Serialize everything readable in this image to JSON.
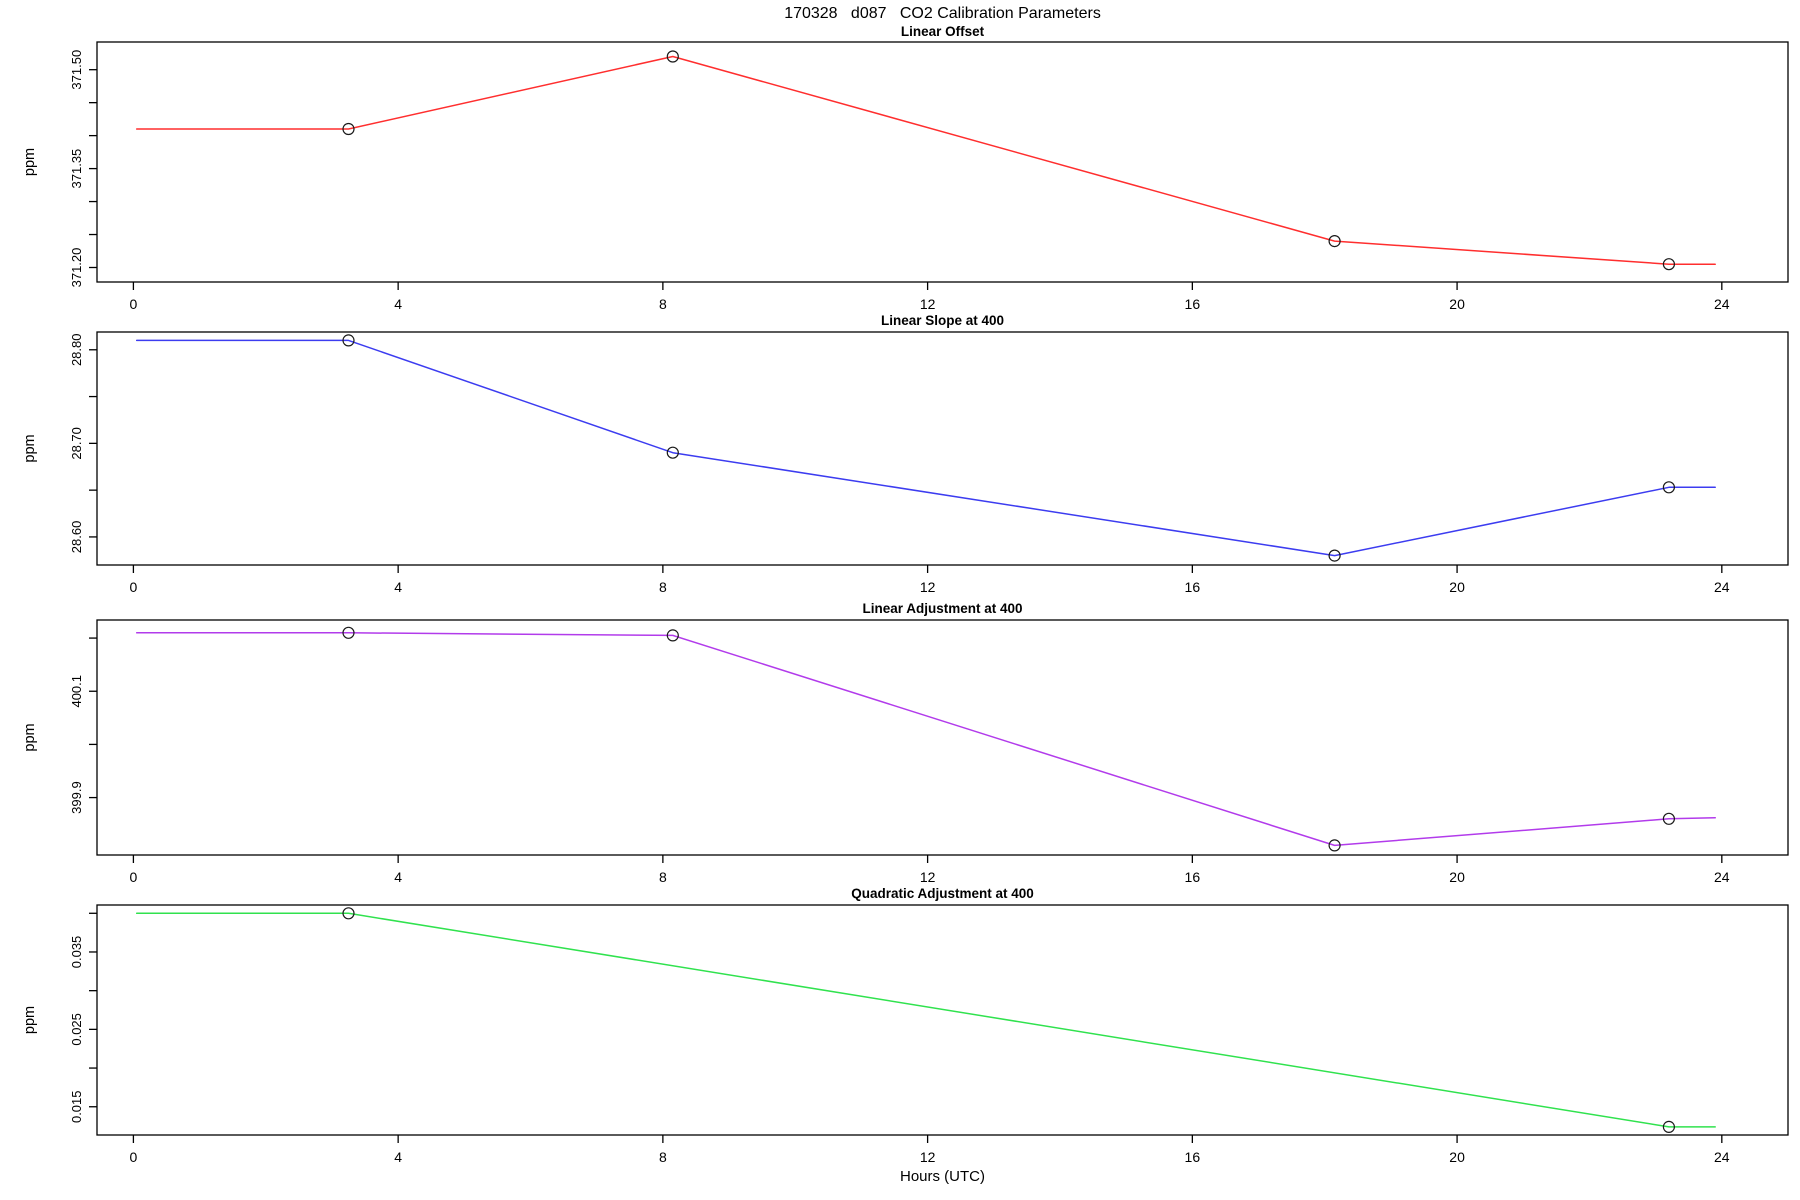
{
  "main_title": "170328   d087   CO2 Calibration Parameters",
  "x_axis": {
    "label": "Hours (UTC)",
    "ticks": [
      0,
      4,
      8,
      12,
      16,
      20,
      24
    ],
    "range": [
      -0.55,
      25.0
    ]
  },
  "chart_data": [
    {
      "type": "line",
      "title": "Linear Offset",
      "ylabel": "ppm",
      "color": "#ff2e2e",
      "ylim": [
        371.178,
        371.542
      ],
      "yticks": [
        {
          "v": 371.2,
          "label": "371.20"
        },
        {
          "v": 371.25,
          "label": ""
        },
        {
          "v": 371.3,
          "label": ""
        },
        {
          "v": 371.35,
          "label": "371.35"
        },
        {
          "v": 371.4,
          "label": ""
        },
        {
          "v": 371.45,
          "label": ""
        },
        {
          "v": 371.5,
          "label": "371.50"
        }
      ],
      "line": [
        [
          0.05,
          371.41
        ],
        [
          3.25,
          371.41
        ],
        [
          8.15,
          371.52
        ],
        [
          18.15,
          371.24
        ],
        [
          23.2,
          371.205
        ],
        [
          23.9,
          371.205
        ]
      ],
      "points": [
        [
          3.25,
          371.41
        ],
        [
          8.15,
          371.52
        ],
        [
          18.15,
          371.24
        ],
        [
          23.2,
          371.205
        ]
      ]
    },
    {
      "type": "line",
      "title": "Linear Slope at 400",
      "ylabel": "ppm",
      "color": "#3c3cf0",
      "ylim": [
        28.57,
        28.819
      ],
      "yticks": [
        {
          "v": 28.6,
          "label": "28.60"
        },
        {
          "v": 28.65,
          "label": ""
        },
        {
          "v": 28.7,
          "label": "28.70"
        },
        {
          "v": 28.75,
          "label": ""
        },
        {
          "v": 28.8,
          "label": "28.80"
        }
      ],
      "line": [
        [
          0.05,
          28.81
        ],
        [
          3.25,
          28.81
        ],
        [
          8.15,
          28.69
        ],
        [
          18.15,
          28.58
        ],
        [
          23.2,
          28.653
        ],
        [
          23.9,
          28.653
        ]
      ],
      "points": [
        [
          3.25,
          28.81
        ],
        [
          8.15,
          28.69
        ],
        [
          18.15,
          28.58
        ],
        [
          23.2,
          28.653
        ]
      ]
    },
    {
      "type": "line",
      "title": "Linear Adjustment at 400",
      "ylabel": "ppm",
      "color": "#b23beb",
      "ylim": [
        399.792,
        400.234
      ],
      "yticks": [
        {
          "v": 399.9,
          "label": "399.9"
        },
        {
          "v": 400.0,
          "label": ""
        },
        {
          "v": 400.1,
          "label": "400.1"
        },
        {
          "v": 400.2,
          "label": ""
        }
      ],
      "line": [
        [
          0.05,
          400.21
        ],
        [
          3.25,
          400.21
        ],
        [
          8.15,
          400.205
        ],
        [
          18.15,
          399.81
        ],
        [
          23.2,
          399.86
        ],
        [
          23.9,
          399.862
        ]
      ],
      "points": [
        [
          3.25,
          400.21
        ],
        [
          8.15,
          400.205
        ],
        [
          18.15,
          399.81
        ],
        [
          23.2,
          399.86
        ]
      ]
    },
    {
      "type": "line",
      "title": "Quadratic Adjustment at 400",
      "ylabel": "ppm",
      "color": "#30e24e",
      "ylim": [
        0.01135,
        0.04107
      ],
      "yticks": [
        {
          "v": 0.015,
          "label": "0.015"
        },
        {
          "v": 0.02,
          "label": ""
        },
        {
          "v": 0.025,
          "label": "0.025"
        },
        {
          "v": 0.03,
          "label": ""
        },
        {
          "v": 0.035,
          "label": "0.035"
        },
        {
          "v": 0.04,
          "label": ""
        }
      ],
      "line": [
        [
          0.05,
          0.04
        ],
        [
          3.25,
          0.04
        ],
        [
          23.2,
          0.0124
        ],
        [
          23.9,
          0.0124
        ]
      ],
      "points": [
        [
          3.25,
          0.04
        ],
        [
          23.2,
          0.0124
        ]
      ]
    }
  ]
}
